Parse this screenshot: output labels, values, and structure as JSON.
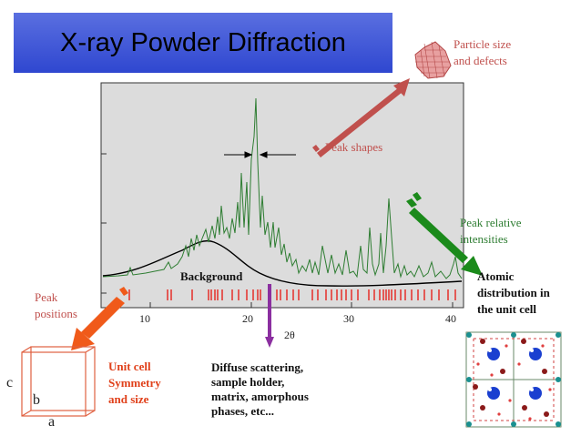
{
  "title": "X-ray Powder Diffraction",
  "labels": {
    "particle_size": [
      "Particle size",
      "and defects"
    ],
    "peak_shapes": "Peak shapes",
    "peak_relative": [
      "Peak relative",
      "intensities"
    ],
    "atomic": [
      "Atomic",
      "distribution in",
      "the unit cell"
    ],
    "peak_positions": [
      "Peak",
      "positions"
    ],
    "background": "Background",
    "unit_cell": [
      "Unit cell",
      "Symmetry",
      "and size"
    ],
    "diffuse": [
      "Diffuse scattering,",
      "sample holder,",
      "matrix, amorphous",
      "phases, etc..."
    ],
    "axis_x": "2θ",
    "cell_axes": {
      "a": "a",
      "b": "b",
      "c": "c"
    }
  },
  "x_ticks": [
    "10",
    "20",
    "30",
    "40"
  ],
  "colors": {
    "pattern": "#2e7d32",
    "ticks": "#e53935",
    "arrow_red": "#c0504d",
    "arrow_green": "#1b8a1b",
    "arrow_orange": "#f05a1a",
    "arrow_purple": "#8b2fa0",
    "plot_bg": "#dcdcdc"
  }
}
